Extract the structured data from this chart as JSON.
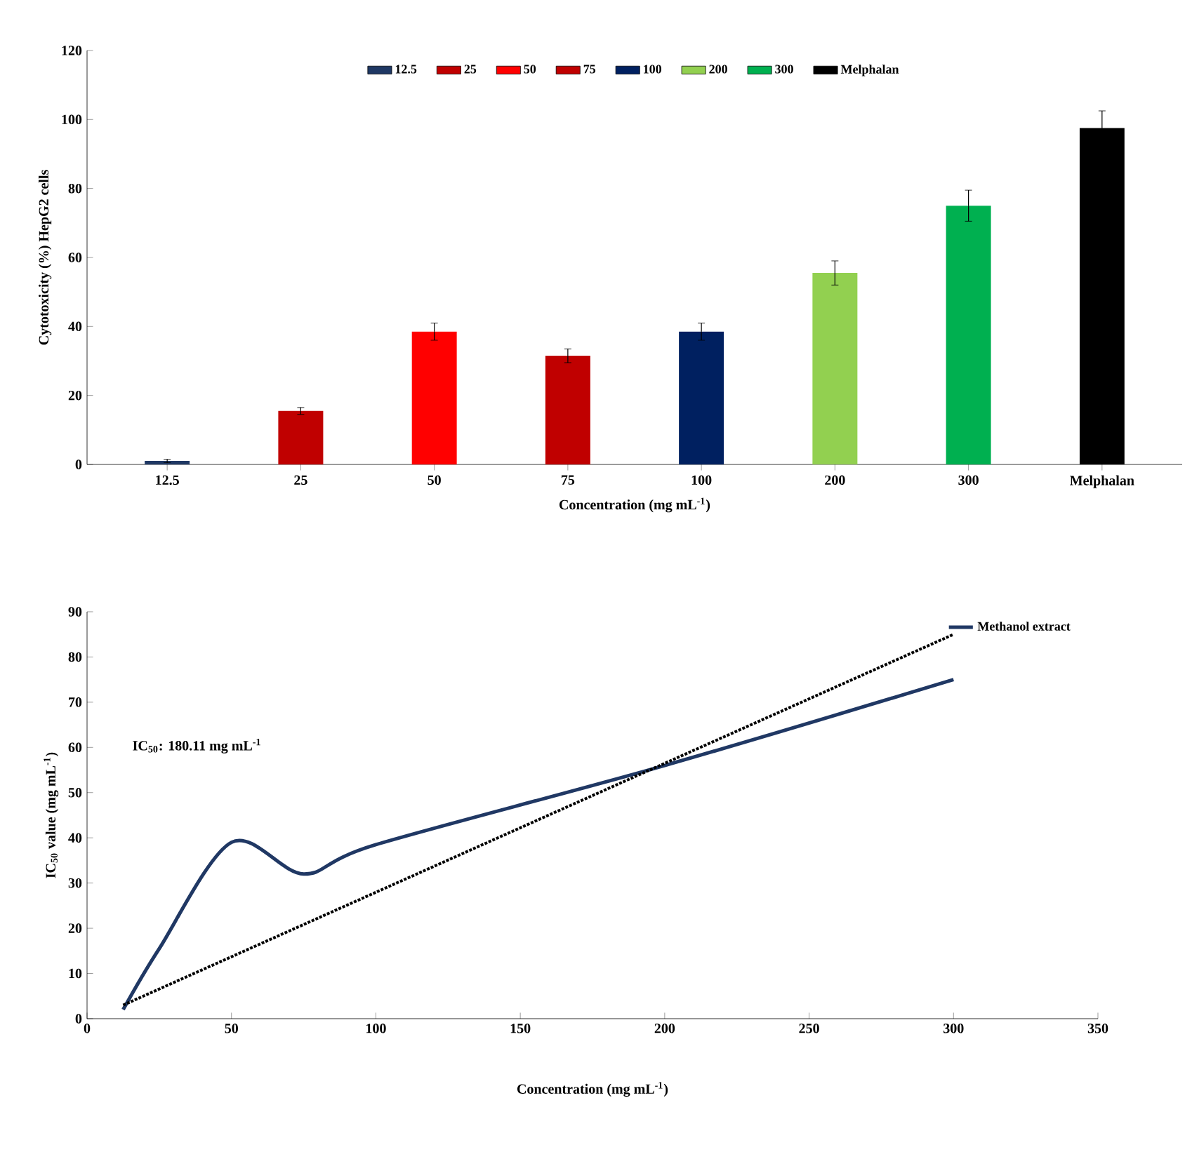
{
  "chart_data": [
    {
      "type": "bar",
      "categories": [
        "12.5",
        "25",
        "50",
        "75",
        "100",
        "200",
        "300",
        "Melphalan"
      ],
      "series": [
        {
          "name": "12.5",
          "color": "#1f3864",
          "values": [
            1,
            null,
            null,
            null,
            null,
            null,
            null,
            null
          ],
          "errors": [
            0.5,
            null,
            null,
            null,
            null,
            null,
            null,
            null
          ]
        },
        {
          "name": "25",
          "color": "#c00000",
          "values": [
            null,
            15.5,
            null,
            null,
            null,
            null,
            null,
            null
          ],
          "errors": [
            null,
            1,
            null,
            null,
            null,
            null,
            null,
            null
          ]
        },
        {
          "name": "50",
          "color": "#ff0000",
          "values": [
            null,
            null,
            38.5,
            null,
            null,
            null,
            null,
            null
          ],
          "errors": [
            null,
            null,
            2.5,
            null,
            null,
            null,
            null,
            null
          ]
        },
        {
          "name": "75",
          "color": "#c00000",
          "values": [
            null,
            null,
            null,
            31.5,
            null,
            null,
            null,
            null
          ],
          "errors": [
            null,
            null,
            null,
            2,
            null,
            null,
            null,
            null
          ]
        },
        {
          "name": "100",
          "color": "#002060",
          "values": [
            null,
            null,
            null,
            null,
            38.5,
            null,
            null,
            null
          ],
          "errors": [
            null,
            null,
            null,
            null,
            2.5,
            null,
            null,
            null
          ]
        },
        {
          "name": "200",
          "color": "#92d050",
          "values": [
            null,
            null,
            null,
            null,
            null,
            55.5,
            null,
            null
          ],
          "errors": [
            null,
            null,
            null,
            null,
            null,
            3.5,
            null,
            null
          ]
        },
        {
          "name": "300",
          "color": "#00b050",
          "values": [
            null,
            null,
            null,
            null,
            null,
            null,
            75,
            null
          ],
          "errors": [
            null,
            null,
            null,
            null,
            null,
            null,
            4.5,
            null
          ]
        },
        {
          "name": "Melphalan",
          "color": "#000000",
          "values": [
            null,
            null,
            null,
            null,
            null,
            null,
            null,
            97.5
          ],
          "errors": [
            null,
            null,
            null,
            null,
            null,
            null,
            null,
            5
          ]
        }
      ],
      "xlabel": "Concentration (mg mL$^{-1}$)",
      "ylabel": "Cytotoxicity (%) HepG2 cells",
      "ylim": [
        0,
        120
      ],
      "yticks": [
        0,
        20,
        40,
        60,
        80,
        100,
        120
      ],
      "legend": "top",
      "grid": false
    },
    {
      "type": "line",
      "xlabel": "Concentration (mg mL$^{-1}$)",
      "ylabel": "IC$_{50}$ value (mg mL$^{-1}$)",
      "series": [
        {
          "name": "Methanol extract",
          "color": "#203864",
          "x": [
            12.5,
            25,
            50,
            75,
            100,
            200,
            300
          ],
          "values": [
            2,
            15.5,
            39,
            32,
            38.5,
            56,
            75
          ],
          "line_style": "solid"
        },
        {
          "color": "#000000",
          "x": [
            12.5,
            300
          ],
          "values": [
            3,
            85
          ],
          "line_style": "dotted"
        }
      ],
      "annotations": [
        "IC$_{50}$: 180.11 mg mL$^{-1}$"
      ],
      "xlim": [
        0,
        350
      ],
      "xticks": [
        0,
        50,
        100,
        150,
        200,
        250,
        300,
        350
      ],
      "ylim": [
        0,
        90
      ],
      "yticks": [
        0,
        10,
        20,
        30,
        40,
        50,
        60,
        70,
        80,
        90
      ],
      "legend": "top right",
      "grid": false
    }
  ]
}
